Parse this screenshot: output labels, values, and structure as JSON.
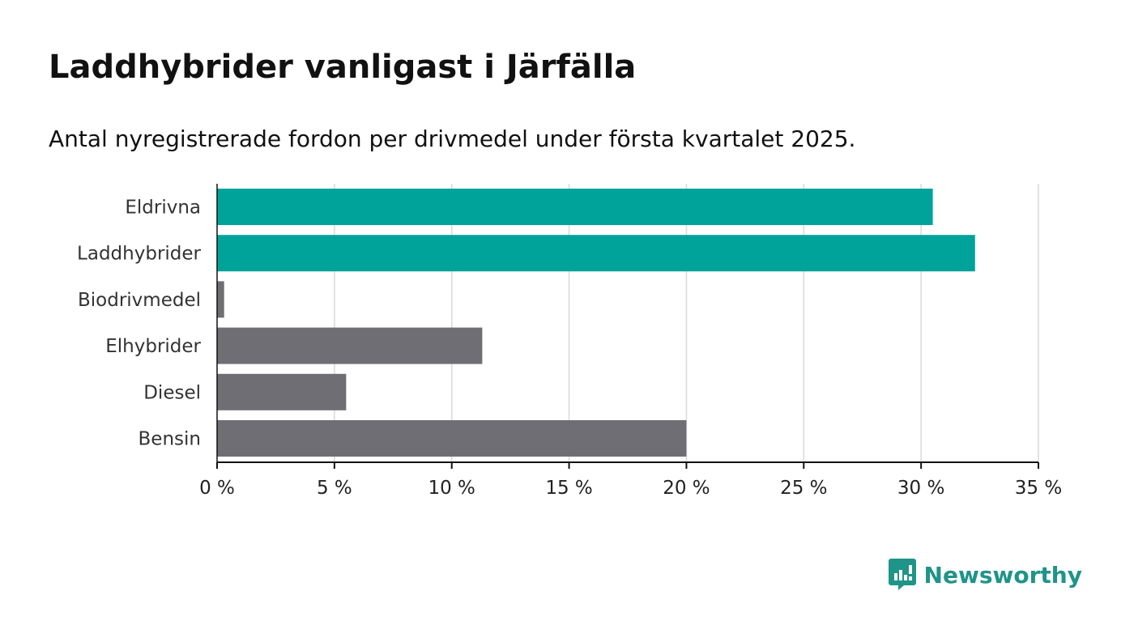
{
  "header": {
    "title": "Laddhybrider vanligast i Järfälla",
    "subtitle": "Antal nyregistrerade fordon per drivmedel under första kvartalet 2025."
  },
  "brand": {
    "name": "Newsworthy",
    "icon": "newsworthy-logo-icon",
    "color": "#1f9488"
  },
  "chart_data": {
    "type": "bar",
    "orientation": "horizontal",
    "categories": [
      "Eldrivna",
      "Laddhybrider",
      "Biodrivmedel",
      "Elhybrider",
      "Diesel",
      "Bensin"
    ],
    "values": [
      30.5,
      32.3,
      0.3,
      11.3,
      5.5,
      20.0
    ],
    "colors": [
      "#00a39a",
      "#00a39a",
      "#6f6e74",
      "#6f6e74",
      "#6f6e74",
      "#6f6e74"
    ],
    "xlim": [
      0,
      35
    ],
    "xticks": [
      0,
      5,
      10,
      15,
      20,
      25,
      30,
      35
    ],
    "xtick_labels": [
      "0 %",
      "5 %",
      "10 %",
      "15 %",
      "20 %",
      "25 %",
      "30 %",
      "35 %"
    ],
    "grid": true
  }
}
